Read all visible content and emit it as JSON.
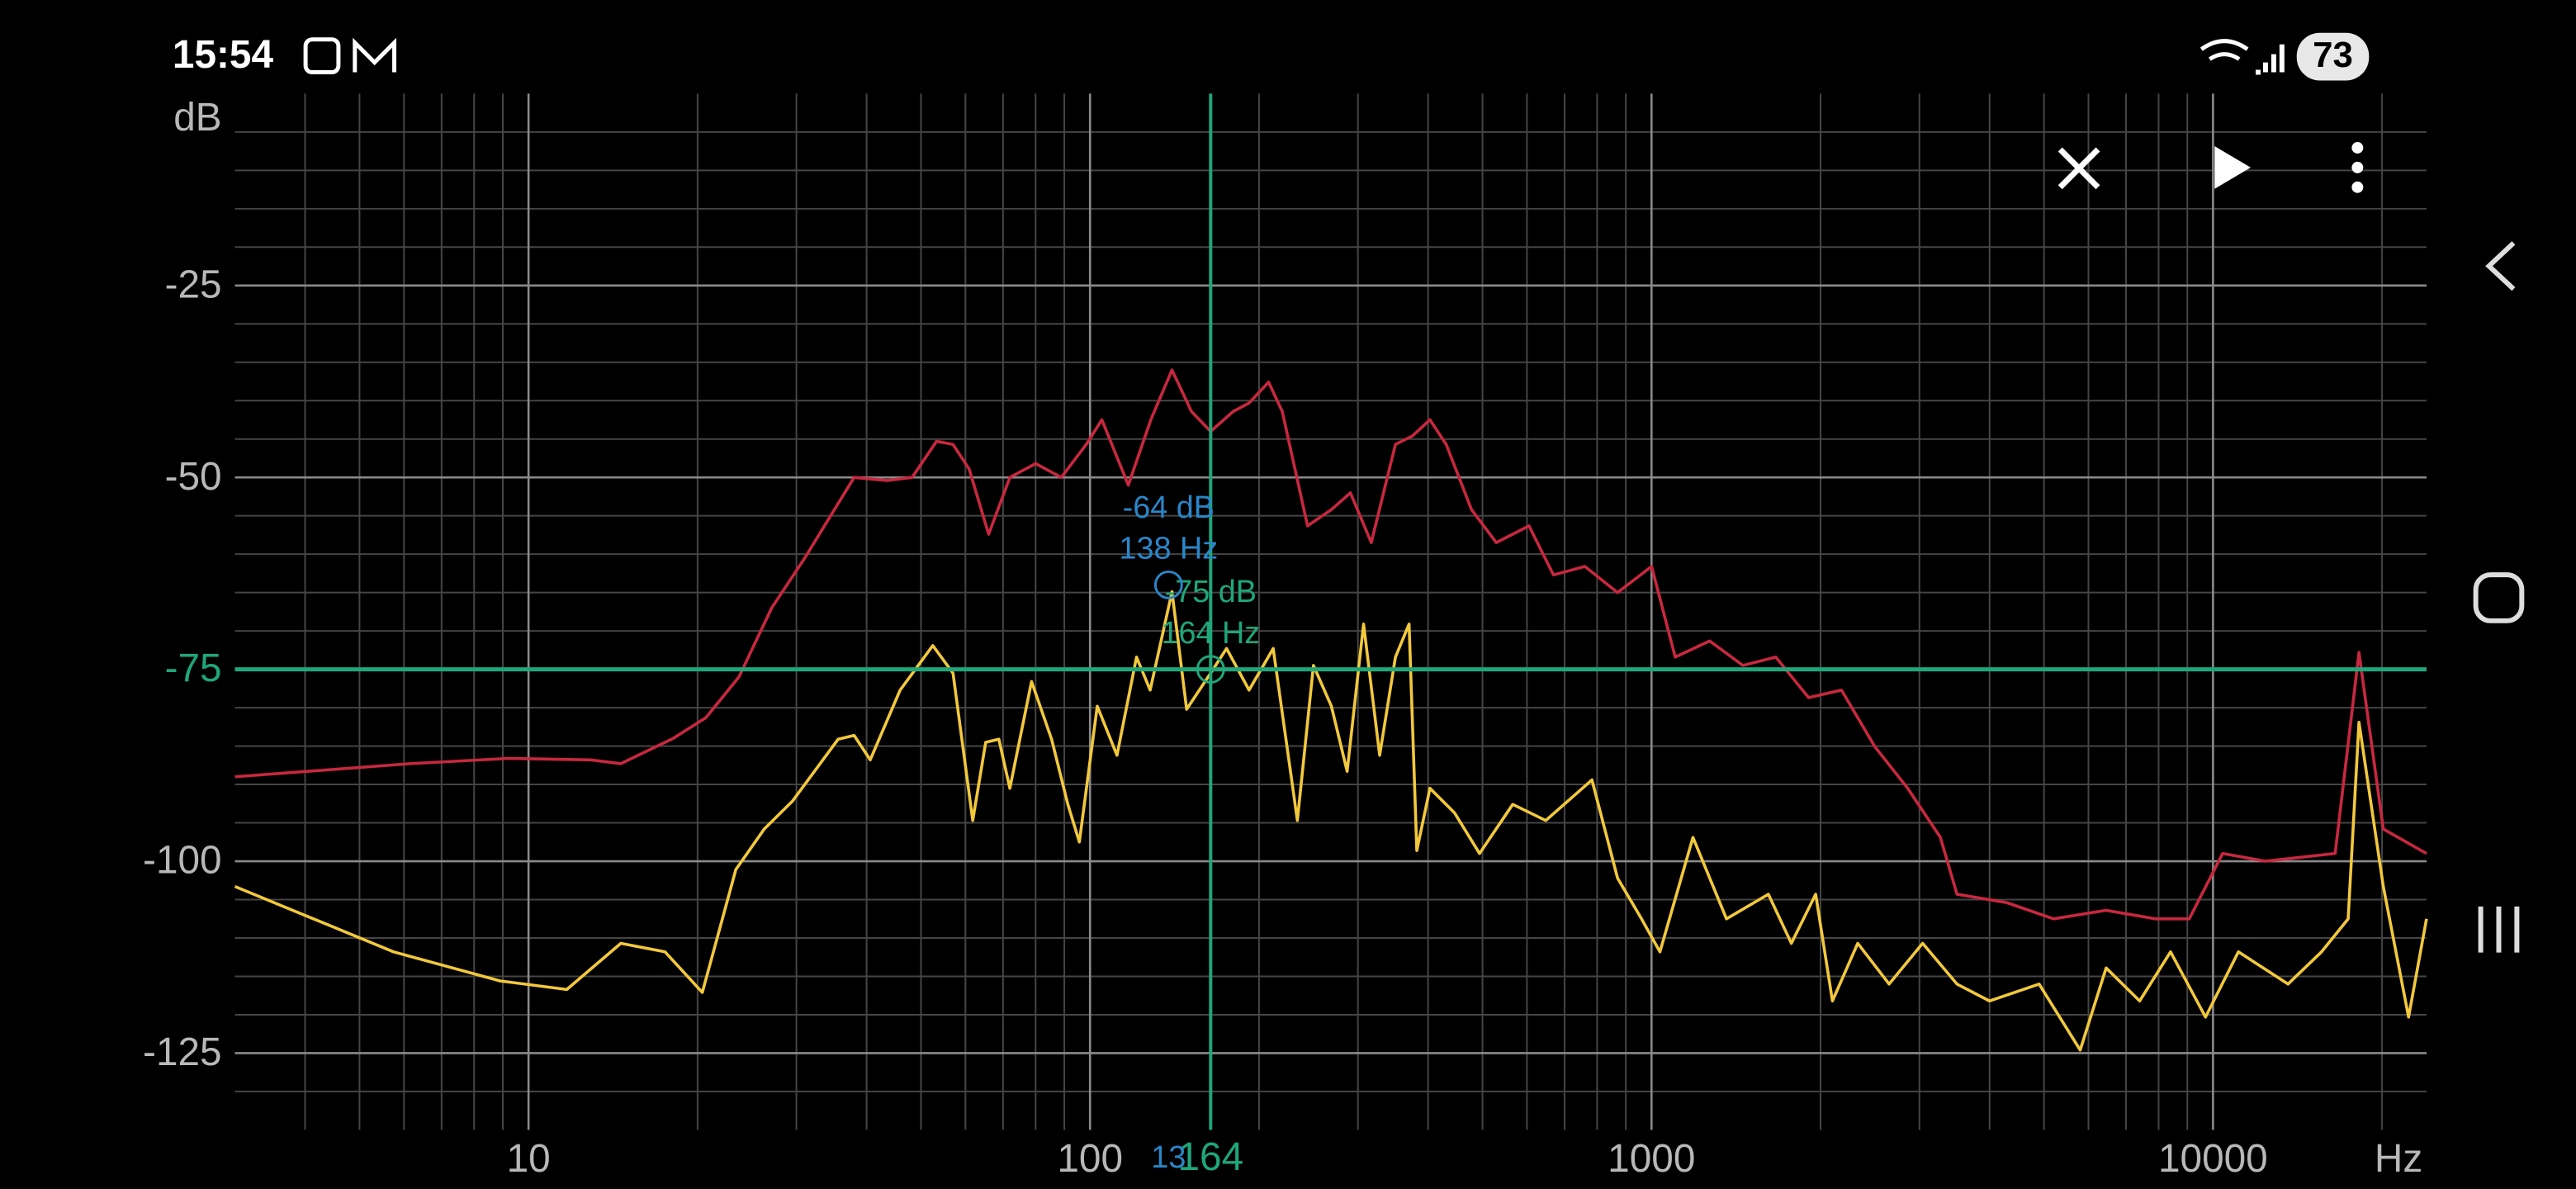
{
  "status_bar": {
    "time": "15:54",
    "battery": "73"
  },
  "chart_data": {
    "type": "line",
    "y_unit": "dB",
    "x_unit": "Hz",
    "xlog": true,
    "grid": true,
    "minor_grid": true,
    "xlim": [
      3,
      24000
    ],
    "ylim": [
      -135,
      0
    ],
    "xticks": [
      10,
      100,
      1000,
      10000
    ],
    "yticks": [
      -125,
      -100,
      -75,
      -50,
      -25
    ],
    "series": [
      {
        "color": "#c8283f",
        "x": [
          3,
          6.15,
          9.2,
          12.9,
          14.6,
          18.1,
          20.7,
          23.7,
          27.1,
          31,
          38,
          43.5,
          48.2,
          53.3,
          57,
          60.9,
          66,
          72,
          80,
          88.9,
          98.5,
          105,
          117,
          128.3,
          140,
          151.5,
          164,
          180,
          192,
          208,
          220,
          244,
          269,
          291,
          317,
          350,
          375,
          403,
          431,
          478,
          529,
          605,
          669,
          761,
          870,
          1000,
          1102,
          1270,
          1455,
          1665,
          1905,
          2180,
          2500,
          2860,
          3270,
          3500,
          4290,
          5200,
          6450,
          7900,
          9070,
          10400,
          12400,
          16500,
          18200,
          20100,
          24000
        ],
        "values": [
          -89,
          -87.3,
          -86.6,
          -86.8,
          -87.3,
          -84,
          -81.3,
          -76,
          -67,
          -60.6,
          -50,
          -50.4,
          -50,
          -45.3,
          -45.7,
          -48.9,
          -57.4,
          -50,
          -48.2,
          -50,
          -45.7,
          -42.5,
          -51,
          -42.5,
          -36,
          -41.4,
          -44,
          -41.4,
          -40.3,
          -37.6,
          -41.4,
          -56.3,
          -54.2,
          -52,
          -58.5,
          -45.7,
          -44.6,
          -42.5,
          -45.7,
          -54.2,
          -58.5,
          -56.3,
          -62.7,
          -61.6,
          -65,
          -61.6,
          -73.4,
          -71.3,
          -74.5,
          -73.4,
          -78.7,
          -77.7,
          -85.1,
          -90.5,
          -96.9,
          -104.3,
          -105.4,
          -107.5,
          -106.4,
          -107.5,
          -107.5,
          -99,
          -100,
          -99,
          -72.8,
          -95.8,
          -99
        ]
      },
      {
        "color": "#f2c83c",
        "x": [
          3,
          5.75,
          8.9,
          11.7,
          14.6,
          17.5,
          20.4,
          23.4,
          26.3,
          29.5,
          35.6,
          38,
          40.6,
          45.9,
          52.5,
          57,
          61.8,
          65.2,
          68.8,
          72,
          78.7,
          85.4,
          91.3,
          95.7,
          103,
          111.7,
          121,
          128,
          140,
          148.6,
          164,
          175,
          192,
          212,
          234,
          250,
          269,
          287,
          307,
          328,
          350,
          370,
          382,
          403,
          446,
          494,
          566,
          648,
          783,
          870,
          960,
          1035,
          1185,
          1360,
          1615,
          1775,
          1960,
          2100,
          2330,
          2650,
          3040,
          3500,
          4000,
          4900,
          5800,
          6450,
          7400,
          8400,
          9700,
          11100,
          13600,
          15600,
          17400,
          18200,
          20100,
          22300,
          24000
        ],
        "values": [
          -103.3,
          -111.8,
          -115.6,
          -116.7,
          -110.7,
          -111.8,
          -117.1,
          -101.1,
          -95.8,
          -92.2,
          -84.1,
          -83.6,
          -86.8,
          -77.7,
          -71.9,
          -75.5,
          -94.7,
          -84.5,
          -84.1,
          -90.5,
          -76.6,
          -84.1,
          -92.6,
          -97.5,
          -79.8,
          -86.2,
          -73.4,
          -77.7,
          -64.9,
          -80.2,
          -75.5,
          -72.3,
          -77.7,
          -72.3,
          -94.7,
          -74.5,
          -79.8,
          -88.3,
          -69.1,
          -86.2,
          -73.4,
          -69.1,
          -98.6,
          -90.5,
          -93.7,
          -99,
          -92.6,
          -94.7,
          -89.4,
          -102.2,
          -107.5,
          -111.8,
          -96.9,
          -107.5,
          -104.3,
          -110.7,
          -104.3,
          -118.2,
          -110.7,
          -116,
          -110.7,
          -116,
          -118.2,
          -116,
          -124.6,
          -113.9,
          -118.2,
          -111.8,
          -120.3,
          -111.8,
          -116,
          -111.8,
          -107.5,
          -81.9,
          -103.3,
          -120.3,
          -107.5
        ]
      }
    ],
    "cursors": [
      {
        "x": 164,
        "y": -75,
        "color": "#1fa67a",
        "crosshair": true,
        "labels": [
          "-75 dB",
          "164 Hz"
        ],
        "x_label": "164"
      },
      {
        "x": 138,
        "y": -64,
        "color": "#2a86c8",
        "crosshair": false,
        "labels": [
          "-64 dB",
          "138 Hz"
        ],
        "x_label": "13"
      }
    ]
  }
}
